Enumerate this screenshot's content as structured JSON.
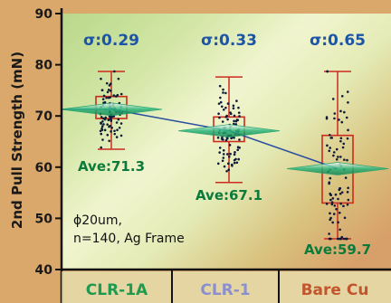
{
  "chart_data": {
    "type": "box",
    "ylabel": "2nd Pull Strength (mN)",
    "ylim": [
      40,
      90
    ],
    "yticks": [
      40,
      50,
      60,
      70,
      80,
      90
    ],
    "categories": [
      "CLR-1A",
      "CLR-1",
      "Bare Cu"
    ],
    "category_colors": [
      "#1f9a4f",
      "#8a8fd0",
      "#c2552b"
    ],
    "sigma": [
      "σ:0.29",
      "σ:0.33",
      "σ:0.65"
    ],
    "averages": [
      71.3,
      67.1,
      59.7
    ],
    "average_labels": [
      "Ave:71.3",
      "Ave:67.1",
      "Ave:59.7"
    ],
    "boxes": [
      {
        "whisker_low": 63.5,
        "q1": 69.5,
        "q3": 73.8,
        "whisker_high": 78.7
      },
      {
        "whisker_low": 57.0,
        "q1": 65.0,
        "q3": 69.8,
        "whisker_high": 77.6
      },
      {
        "whisker_low": 46.0,
        "q1": 53.0,
        "q3": 66.2,
        "whisker_high": 78.7
      }
    ],
    "annotation_lines": [
      "ϕ20um,",
      "n=140, Ag Frame"
    ],
    "grid": false
  },
  "colors": {
    "sigma_text": "#1c55a8",
    "average_text": "#0c7a3a",
    "box": "#cc2b1e",
    "trend_line": "#2a4fa0",
    "mean_marker": "#1fa06a",
    "points": "#0e1a3a"
  }
}
